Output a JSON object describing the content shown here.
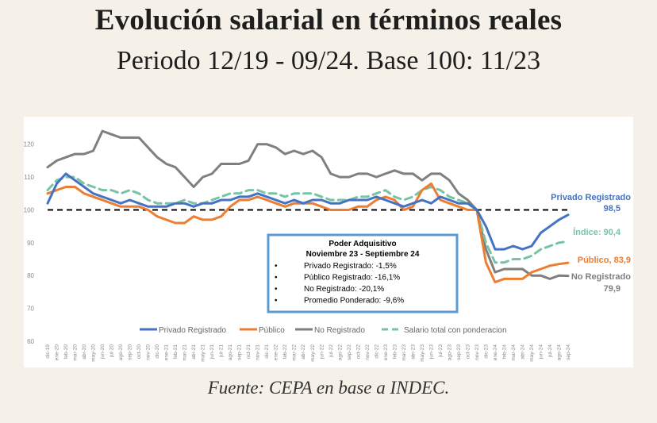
{
  "header": {
    "title": "Evolución salarial en términos reales",
    "subtitle": "Periodo 12/19 - 09/24. Base 100: 11/23"
  },
  "source": "Fuente: CEPA en base a INDEC.",
  "chart_data": {
    "type": "line",
    "ylim": [
      60,
      125
    ],
    "yticks": [
      60,
      70,
      80,
      90,
      100,
      110,
      120
    ],
    "baseline": 100,
    "grid": false,
    "legend_position": "bottom",
    "x": [
      "dic-19",
      "ene-20",
      "feb-20",
      "mar-20",
      "abr-20",
      "may-20",
      "jun-20",
      "jul-20",
      "ago-20",
      "sep-20",
      "oct-20",
      "nov-20",
      "dic-20",
      "ene-21",
      "feb-21",
      "mar-21",
      "abr-21",
      "may-21",
      "jun-21",
      "jul-21",
      "ago-21",
      "sep-21",
      "oct-21",
      "nov-21",
      "dic-21",
      "ene-22",
      "feb-22",
      "mar-22",
      "abr-22",
      "may-22",
      "jun-22",
      "jul-22",
      "ago-22",
      "sep-22",
      "oct-22",
      "nov-22",
      "dic-22",
      "ene-23",
      "feb-23",
      "mar-23",
      "abr-23",
      "may-23",
      "jun-23",
      "jul-23",
      "ago-23",
      "sep-23",
      "oct-23",
      "nov-23",
      "dic-23",
      "ene-24",
      "feb-24",
      "mar-24",
      "abr-24",
      "may-24",
      "jun-24",
      "jul-24",
      "ago-24",
      "sep-24"
    ],
    "series": [
      {
        "name": "Privado Registrado",
        "color": "#4472c4",
        "style": "solid",
        "values": [
          102,
          108,
          111,
          109,
          107,
          105,
          104,
          103,
          102,
          103,
          102,
          101,
          101,
          101,
          102,
          102,
          101,
          102,
          102,
          103,
          103,
          104,
          104,
          105,
          104,
          103,
          102,
          103,
          102,
          103,
          103,
          102,
          102,
          103,
          103,
          103,
          104,
          103,
          102,
          101,
          102,
          103,
          102,
          104,
          103,
          102,
          102,
          100,
          95,
          88,
          88,
          89,
          88,
          89,
          93,
          95,
          97,
          98.5
        ]
      },
      {
        "name": "Público",
        "color": "#ed7d31",
        "style": "solid",
        "values": [
          105,
          106,
          107,
          107,
          105,
          104,
          103,
          102,
          101,
          101,
          101,
          100,
          98,
          97,
          96,
          96,
          98,
          97,
          97,
          98,
          101,
          103,
          103,
          104,
          103,
          102,
          101,
          102,
          102,
          102,
          101,
          100,
          100,
          100,
          101,
          101,
          103,
          104,
          103,
          100,
          101,
          106,
          108,
          103,
          102,
          101,
          100,
          100,
          84,
          78,
          79,
          79,
          79,
          81,
          82,
          83,
          83.5,
          83.9
        ]
      },
      {
        "name": "No Registrado",
        "color": "#7f7f7f",
        "style": "solid",
        "values": [
          113,
          115,
          116,
          117,
          117,
          118,
          124,
          123,
          122,
          122,
          122,
          119,
          116,
          114,
          113,
          110,
          107,
          110,
          111,
          114,
          114,
          114,
          115,
          120,
          120,
          119,
          117,
          118,
          117,
          118,
          116,
          111,
          110,
          110,
          111,
          111,
          110,
          111,
          112,
          111,
          111,
          109,
          111,
          111,
          109,
          105,
          103,
          100,
          88,
          81,
          82,
          82,
          82,
          80,
          80,
          79,
          80,
          79.9
        ]
      },
      {
        "name": "Salario total con ponderacion",
        "color": "#76c4a4",
        "style": "dashed",
        "values": [
          106,
          109,
          110,
          110,
          108,
          107,
          106,
          106,
          105,
          106,
          105,
          103,
          102,
          102,
          102,
          103,
          102,
          102,
          103,
          104,
          105,
          105,
          106,
          106,
          105,
          105,
          104,
          105,
          105,
          105,
          104,
          103,
          103,
          103,
          104,
          104,
          105,
          106,
          104,
          103,
          104,
          106,
          107,
          106,
          104,
          103,
          102,
          100,
          90,
          84,
          84,
          85,
          85,
          86,
          88,
          89,
          90,
          90.4
        ]
      }
    ],
    "end_labels": [
      {
        "series": 0,
        "name": "Privado Registrado",
        "value": "98,5"
      },
      {
        "series": 1,
        "name": "Público",
        "value": "83,9"
      },
      {
        "series": 2,
        "name": "No Registrado",
        "value": "79,9"
      },
      {
        "series": 3,
        "name": "Índice",
        "value": "90,4"
      }
    ],
    "annotation": {
      "title": "Poder Adquisitivo",
      "period": "Noviembre 23 - Septiembre 24",
      "items": [
        "Privado Registrado: -1,5%",
        "Público Registrado: -16,1%",
        "No Registrado: -20,1%",
        "Promedio Ponderado: -9,6%"
      ]
    },
    "colors": {
      "box_border": "#5b9bd5",
      "baseline": "#000000",
      "axis_text": "#888888"
    }
  }
}
